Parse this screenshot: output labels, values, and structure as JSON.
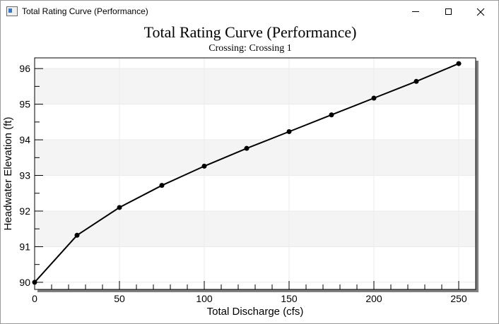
{
  "window": {
    "title": "Total Rating Curve (Performance)"
  },
  "chart_data": {
    "type": "line",
    "title": "Total Rating Curve (Performance)",
    "subtitle": "Crossing: Crossing 1",
    "xlabel": "Total Discharge (cfs)",
    "ylabel": "Headwater Elevation (ft)",
    "xlim": [
      0,
      260
    ],
    "ylim": [
      89.8,
      96.3
    ],
    "xticks": [
      0,
      50,
      100,
      150,
      200,
      250
    ],
    "yticks": [
      90,
      91,
      92,
      93,
      94,
      95,
      96
    ],
    "grid": true,
    "series": [
      {
        "x": [
          0,
          25,
          50,
          75,
          100,
          125,
          150,
          175,
          200,
          225,
          250
        ],
        "values": [
          90.0,
          91.32,
          92.1,
          92.72,
          93.26,
          93.76,
          94.23,
          94.7,
          95.17,
          95.64,
          96.14
        ]
      }
    ]
  }
}
